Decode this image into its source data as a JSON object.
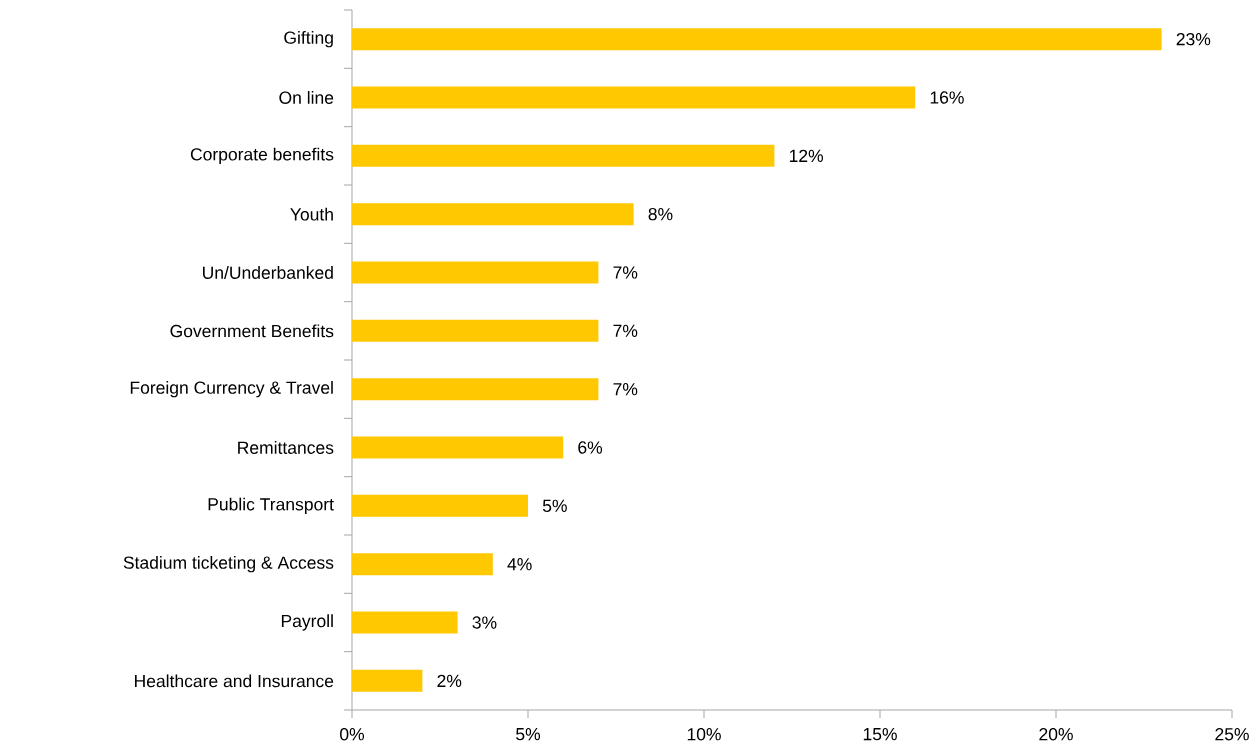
{
  "chart_data": {
    "type": "bar",
    "orientation": "horizontal",
    "categories": [
      "Gifting",
      "On line",
      "Corporate benefits",
      "Youth",
      "Un/Underbanked",
      "Government Benefits",
      "Foreign Currency & Travel",
      "Remittances",
      "Public Transport",
      "Stadium ticketing & Access",
      "Payroll",
      "Healthcare and Insurance"
    ],
    "values": [
      23,
      16,
      12,
      8,
      7,
      7,
      7,
      6,
      5,
      4,
      3,
      2
    ],
    "value_labels": [
      "23%",
      "16%",
      "12%",
      "8%",
      "7%",
      "7%",
      "7%",
      "6%",
      "5%",
      "4%",
      "3%",
      "2%"
    ],
    "color": "#ffc800",
    "xlim": [
      0,
      25
    ],
    "xticks": [
      {
        "value": 0,
        "label": "0%"
      },
      {
        "value": 5,
        "label": "5%"
      },
      {
        "value": 10,
        "label": "10%"
      },
      {
        "value": 15,
        "label": "15%"
      },
      {
        "value": 20,
        "label": "20%"
      },
      {
        "value": 25,
        "label": "25%"
      }
    ],
    "grid": false
  }
}
